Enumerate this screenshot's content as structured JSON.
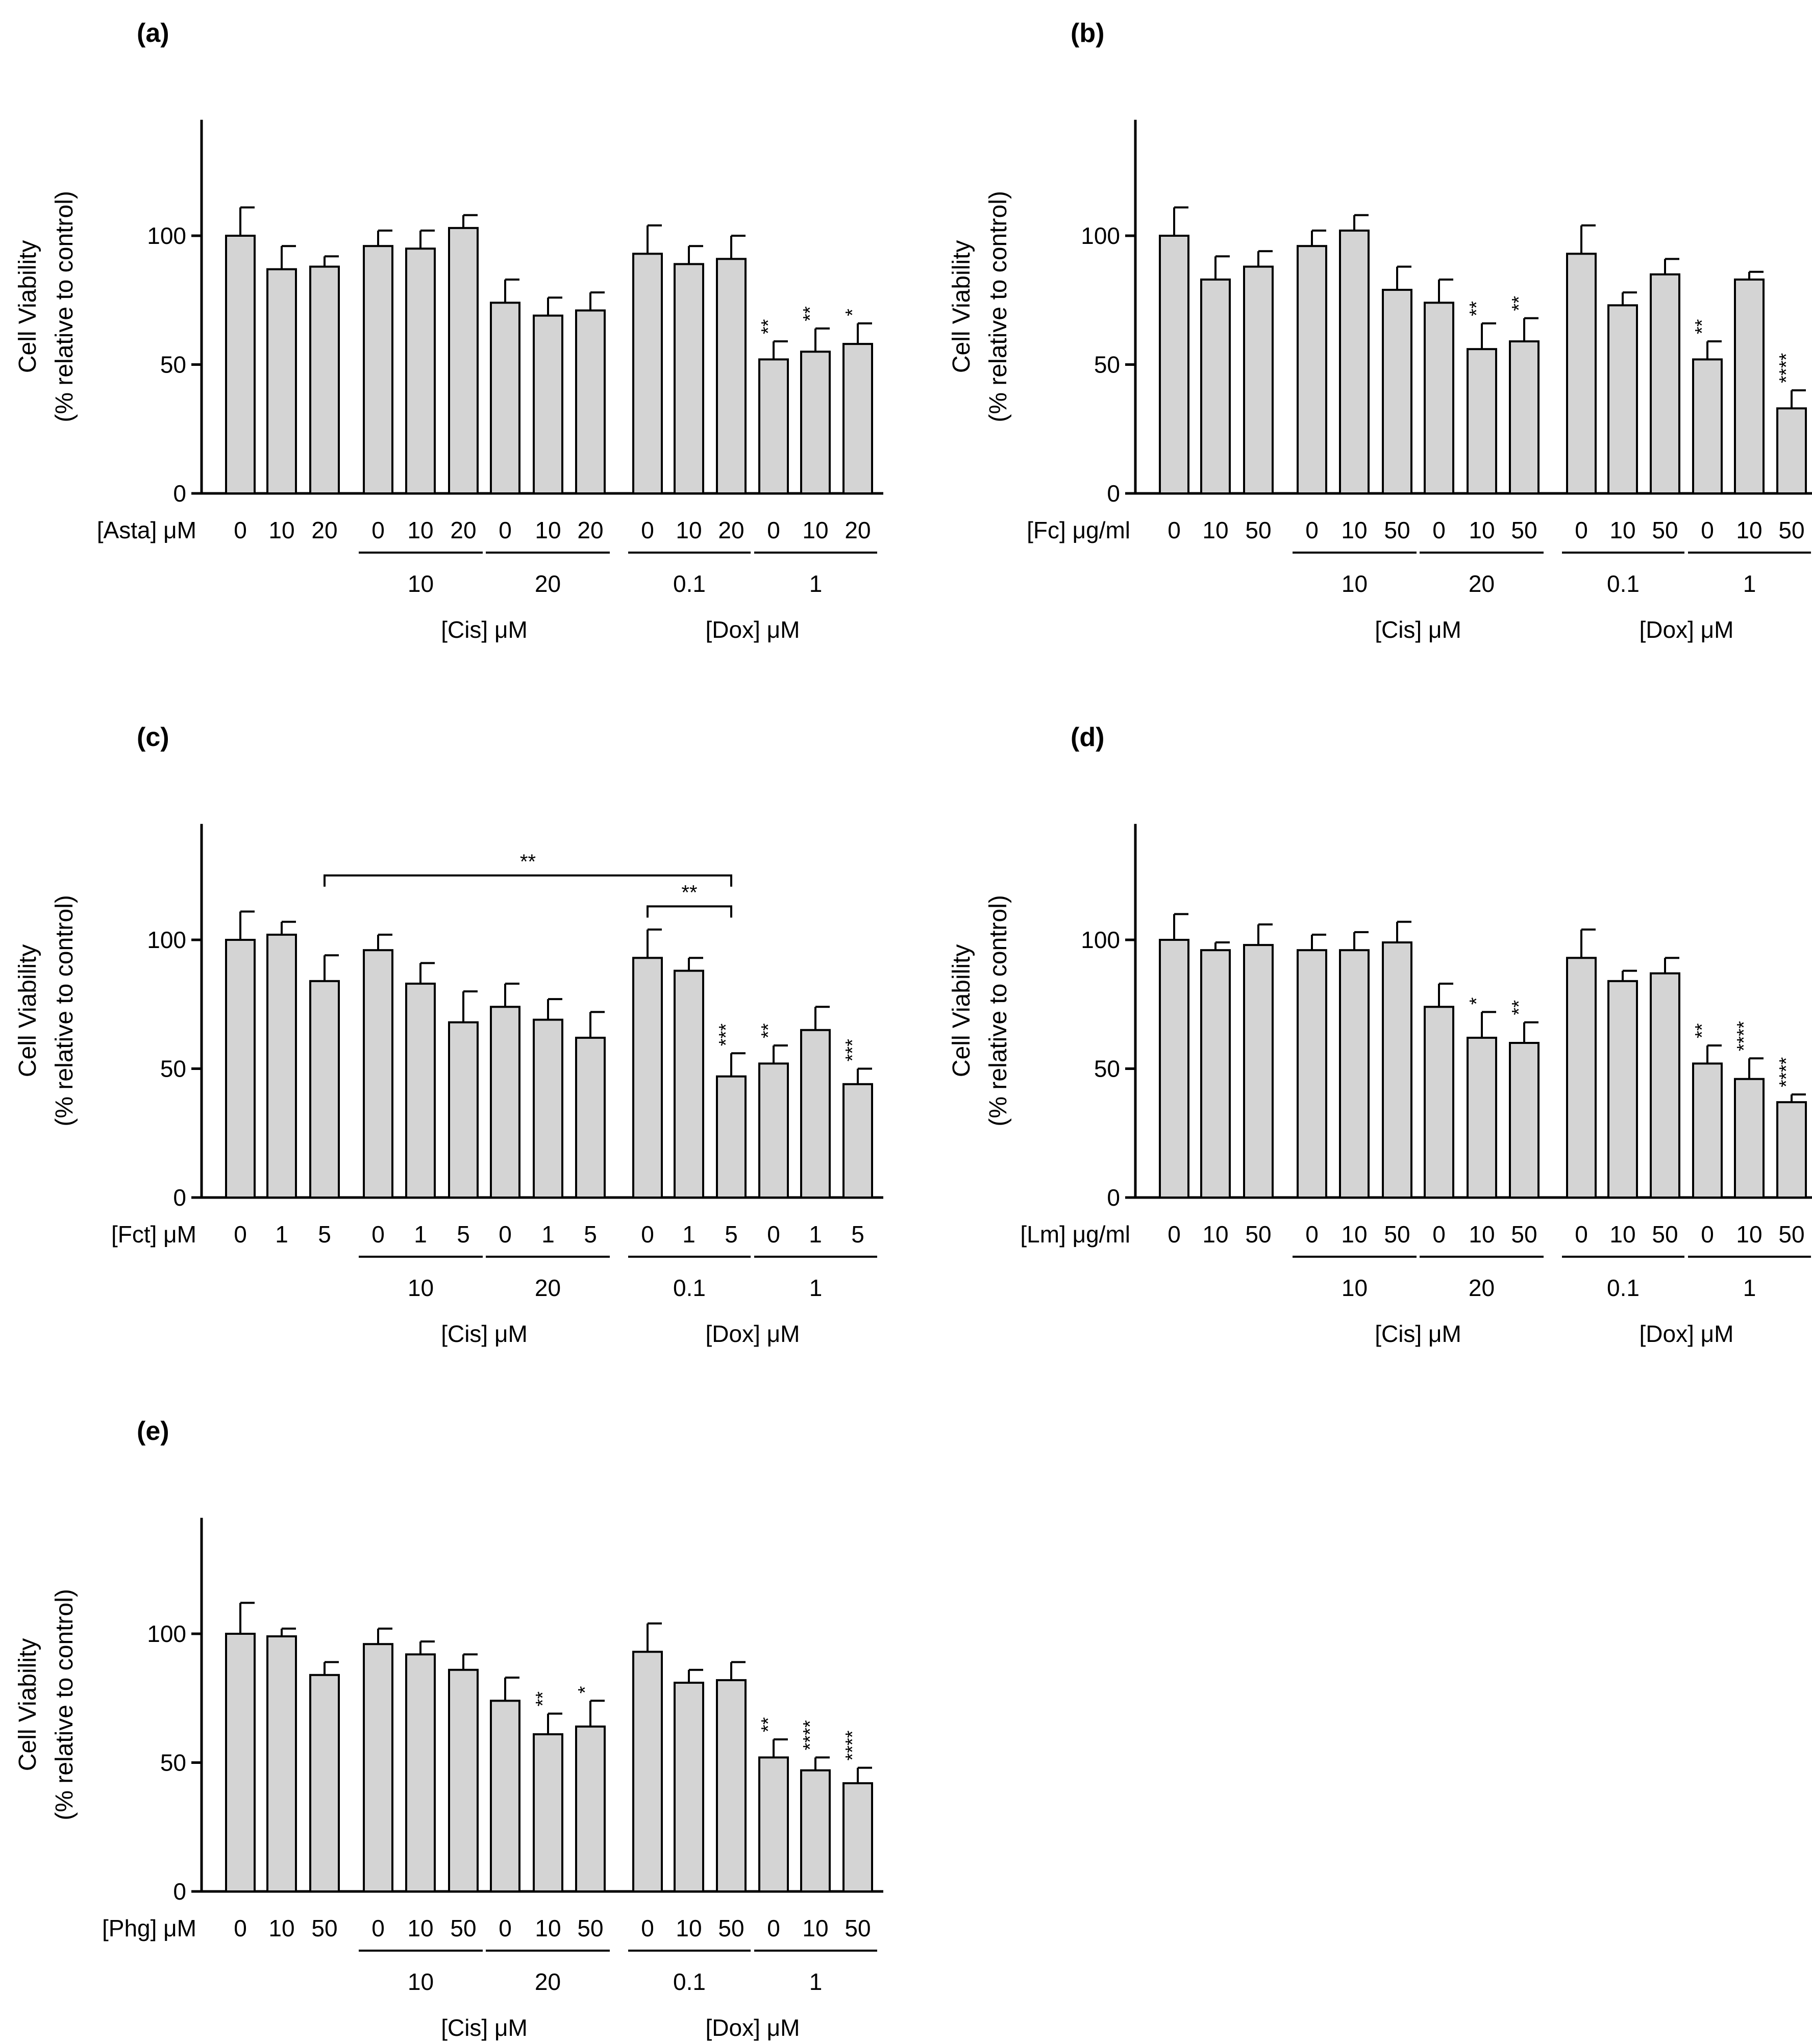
{
  "chart_data": [
    {
      "type": "bar",
      "panel_label": "(a)",
      "ylabel_line1": "Cell Viability",
      "ylabel_line2": "(% relative to control)",
      "ylim": [
        0,
        145
      ],
      "yticks": [
        0,
        50,
        100
      ],
      "treatment_label": "[Asta] μM",
      "categories": [
        "0",
        "10",
        "20",
        "0",
        "10",
        "20",
        "0",
        "10",
        "20",
        "0",
        "10",
        "20",
        "0",
        "10",
        "20"
      ],
      "values": [
        100,
        87,
        88,
        96,
        95,
        103,
        74,
        69,
        71,
        93,
        89,
        91,
        52,
        55,
        58
      ],
      "errors": [
        11,
        9,
        4,
        6,
        7,
        5,
        9,
        7,
        7,
        11,
        7,
        9,
        7,
        9,
        8
      ],
      "significance": [
        "",
        "",
        "",
        "",
        "",
        "",
        "",
        "",
        "",
        "",
        "",
        "",
        "**",
        "**",
        "*"
      ],
      "subgroups": [
        {
          "label": "10",
          "bars": [
            3,
            5
          ]
        },
        {
          "label": "20",
          "bars": [
            6,
            8
          ]
        },
        {
          "label": "0.1",
          "bars": [
            9,
            11
          ]
        },
        {
          "label": "1",
          "bars": [
            12,
            14
          ]
        }
      ],
      "groups": [
        {
          "label": "[Cis] μM",
          "bars": [
            3,
            8
          ]
        },
        {
          "label": "[Dox] μM",
          "bars": [
            9,
            14
          ]
        }
      ],
      "brackets": []
    },
    {
      "type": "bar",
      "panel_label": "(b)",
      "ylabel_line1": "Cell Viability",
      "ylabel_line2": "(% relative to control)",
      "ylim": [
        0,
        145
      ],
      "yticks": [
        0,
        50,
        100
      ],
      "treatment_label": "[Fc] μg/ml",
      "categories": [
        "0",
        "10",
        "50",
        "0",
        "10",
        "50",
        "0",
        "10",
        "50",
        "0",
        "10",
        "50",
        "0",
        "10",
        "50"
      ],
      "values": [
        100,
        83,
        88,
        96,
        102,
        79,
        74,
        56,
        59,
        93,
        73,
        85,
        52,
        83,
        33
      ],
      "errors": [
        11,
        9,
        6,
        6,
        6,
        9,
        9,
        10,
        9,
        11,
        5,
        6,
        7,
        3,
        7
      ],
      "significance": [
        "",
        "",
        "",
        "",
        "",
        "",
        "",
        "**",
        "**",
        "",
        "",
        "",
        "**",
        "",
        "****"
      ],
      "subgroups": [
        {
          "label": "10",
          "bars": [
            3,
            5
          ]
        },
        {
          "label": "20",
          "bars": [
            6,
            8
          ]
        },
        {
          "label": "0.1",
          "bars": [
            9,
            11
          ]
        },
        {
          "label": "1",
          "bars": [
            12,
            14
          ]
        }
      ],
      "groups": [
        {
          "label": "[Cis] μM",
          "bars": [
            3,
            8
          ]
        },
        {
          "label": "[Dox] μM",
          "bars": [
            9,
            14
          ]
        }
      ],
      "brackets": []
    },
    {
      "type": "bar",
      "panel_label": "(c)",
      "ylabel_line1": "Cell Viability",
      "ylabel_line2": "(% relative to control)",
      "ylim": [
        0,
        145
      ],
      "yticks": [
        0,
        50,
        100
      ],
      "treatment_label": "[Fct] μM",
      "categories": [
        "0",
        "1",
        "5",
        "0",
        "1",
        "5",
        "0",
        "1",
        "5",
        "0",
        "1",
        "5",
        "0",
        "1",
        "5"
      ],
      "values": [
        100,
        102,
        84,
        96,
        83,
        68,
        74,
        69,
        62,
        93,
        88,
        47,
        52,
        65,
        44
      ],
      "errors": [
        11,
        5,
        10,
        6,
        8,
        12,
        9,
        8,
        10,
        11,
        5,
        9,
        7,
        9,
        6
      ],
      "significance": [
        "",
        "",
        "",
        "",
        "",
        "",
        "",
        "",
        "",
        "",
        "",
        "***",
        "**",
        "",
        "***"
      ],
      "subgroups": [
        {
          "label": "10",
          "bars": [
            3,
            5
          ]
        },
        {
          "label": "20",
          "bars": [
            6,
            8
          ]
        },
        {
          "label": "0.1",
          "bars": [
            9,
            11
          ]
        },
        {
          "label": "1",
          "bars": [
            12,
            14
          ]
        }
      ],
      "groups": [
        {
          "label": "[Cis] μM",
          "bars": [
            3,
            8
          ]
        },
        {
          "label": "[Dox] μM",
          "bars": [
            9,
            14
          ]
        }
      ],
      "brackets": [
        {
          "from": 2,
          "to": 11,
          "y": 125,
          "label": "**"
        },
        {
          "from": 9,
          "to": 11,
          "y": 113,
          "label": "**"
        }
      ]
    },
    {
      "type": "bar",
      "panel_label": "(d)",
      "ylabel_line1": "Cell Viability",
      "ylabel_line2": "(% relative to control)",
      "ylim": [
        0,
        145
      ],
      "yticks": [
        0,
        50,
        100
      ],
      "treatment_label": "[Lm] μg/ml",
      "categories": [
        "0",
        "10",
        "50",
        "0",
        "10",
        "50",
        "0",
        "10",
        "50",
        "0",
        "10",
        "50",
        "0",
        "10",
        "50"
      ],
      "values": [
        100,
        96,
        98,
        96,
        96,
        99,
        74,
        62,
        60,
        93,
        84,
        87,
        52,
        46,
        37
      ],
      "errors": [
        10,
        3,
        8,
        6,
        7,
        8,
        9,
        10,
        8,
        11,
        4,
        6,
        7,
        8,
        3
      ],
      "significance": [
        "",
        "",
        "",
        "",
        "",
        "",
        "",
        "*",
        "**",
        "",
        "",
        "",
        "**",
        "****",
        "****"
      ],
      "subgroups": [
        {
          "label": "10",
          "bars": [
            3,
            5
          ]
        },
        {
          "label": "20",
          "bars": [
            6,
            8
          ]
        },
        {
          "label": "0.1",
          "bars": [
            9,
            11
          ]
        },
        {
          "label": "1",
          "bars": [
            12,
            14
          ]
        }
      ],
      "groups": [
        {
          "label": "[Cis] μM",
          "bars": [
            3,
            8
          ]
        },
        {
          "label": "[Dox] μM",
          "bars": [
            9,
            14
          ]
        }
      ],
      "brackets": []
    },
    {
      "type": "bar",
      "panel_label": "(e)",
      "ylabel_line1": "Cell Viability",
      "ylabel_line2": "(% relative to control)",
      "ylim": [
        0,
        145
      ],
      "yticks": [
        0,
        50,
        100
      ],
      "treatment_label": "[Phg] μM",
      "categories": [
        "0",
        "10",
        "50",
        "0",
        "10",
        "50",
        "0",
        "10",
        "50",
        "0",
        "10",
        "50",
        "0",
        "10",
        "50"
      ],
      "values": [
        100,
        99,
        84,
        96,
        92,
        86,
        74,
        61,
        64,
        93,
        81,
        82,
        52,
        47,
        42
      ],
      "errors": [
        12,
        3,
        5,
        6,
        5,
        6,
        9,
        8,
        10,
        11,
        5,
        7,
        7,
        5,
        6
      ],
      "significance": [
        "",
        "",
        "",
        "",
        "",
        "",
        "",
        "**",
        "*",
        "",
        "",
        "",
        "**",
        "****",
        "****"
      ],
      "subgroups": [
        {
          "label": "10",
          "bars": [
            3,
            5
          ]
        },
        {
          "label": "20",
          "bars": [
            6,
            8
          ]
        },
        {
          "label": "0.1",
          "bars": [
            9,
            11
          ]
        },
        {
          "label": "1",
          "bars": [
            12,
            14
          ]
        }
      ],
      "groups": [
        {
          "label": "[Cis] μM",
          "bars": [
            3,
            8
          ]
        },
        {
          "label": "[Dox] μM",
          "bars": [
            9,
            14
          ]
        }
      ],
      "brackets": []
    }
  ]
}
